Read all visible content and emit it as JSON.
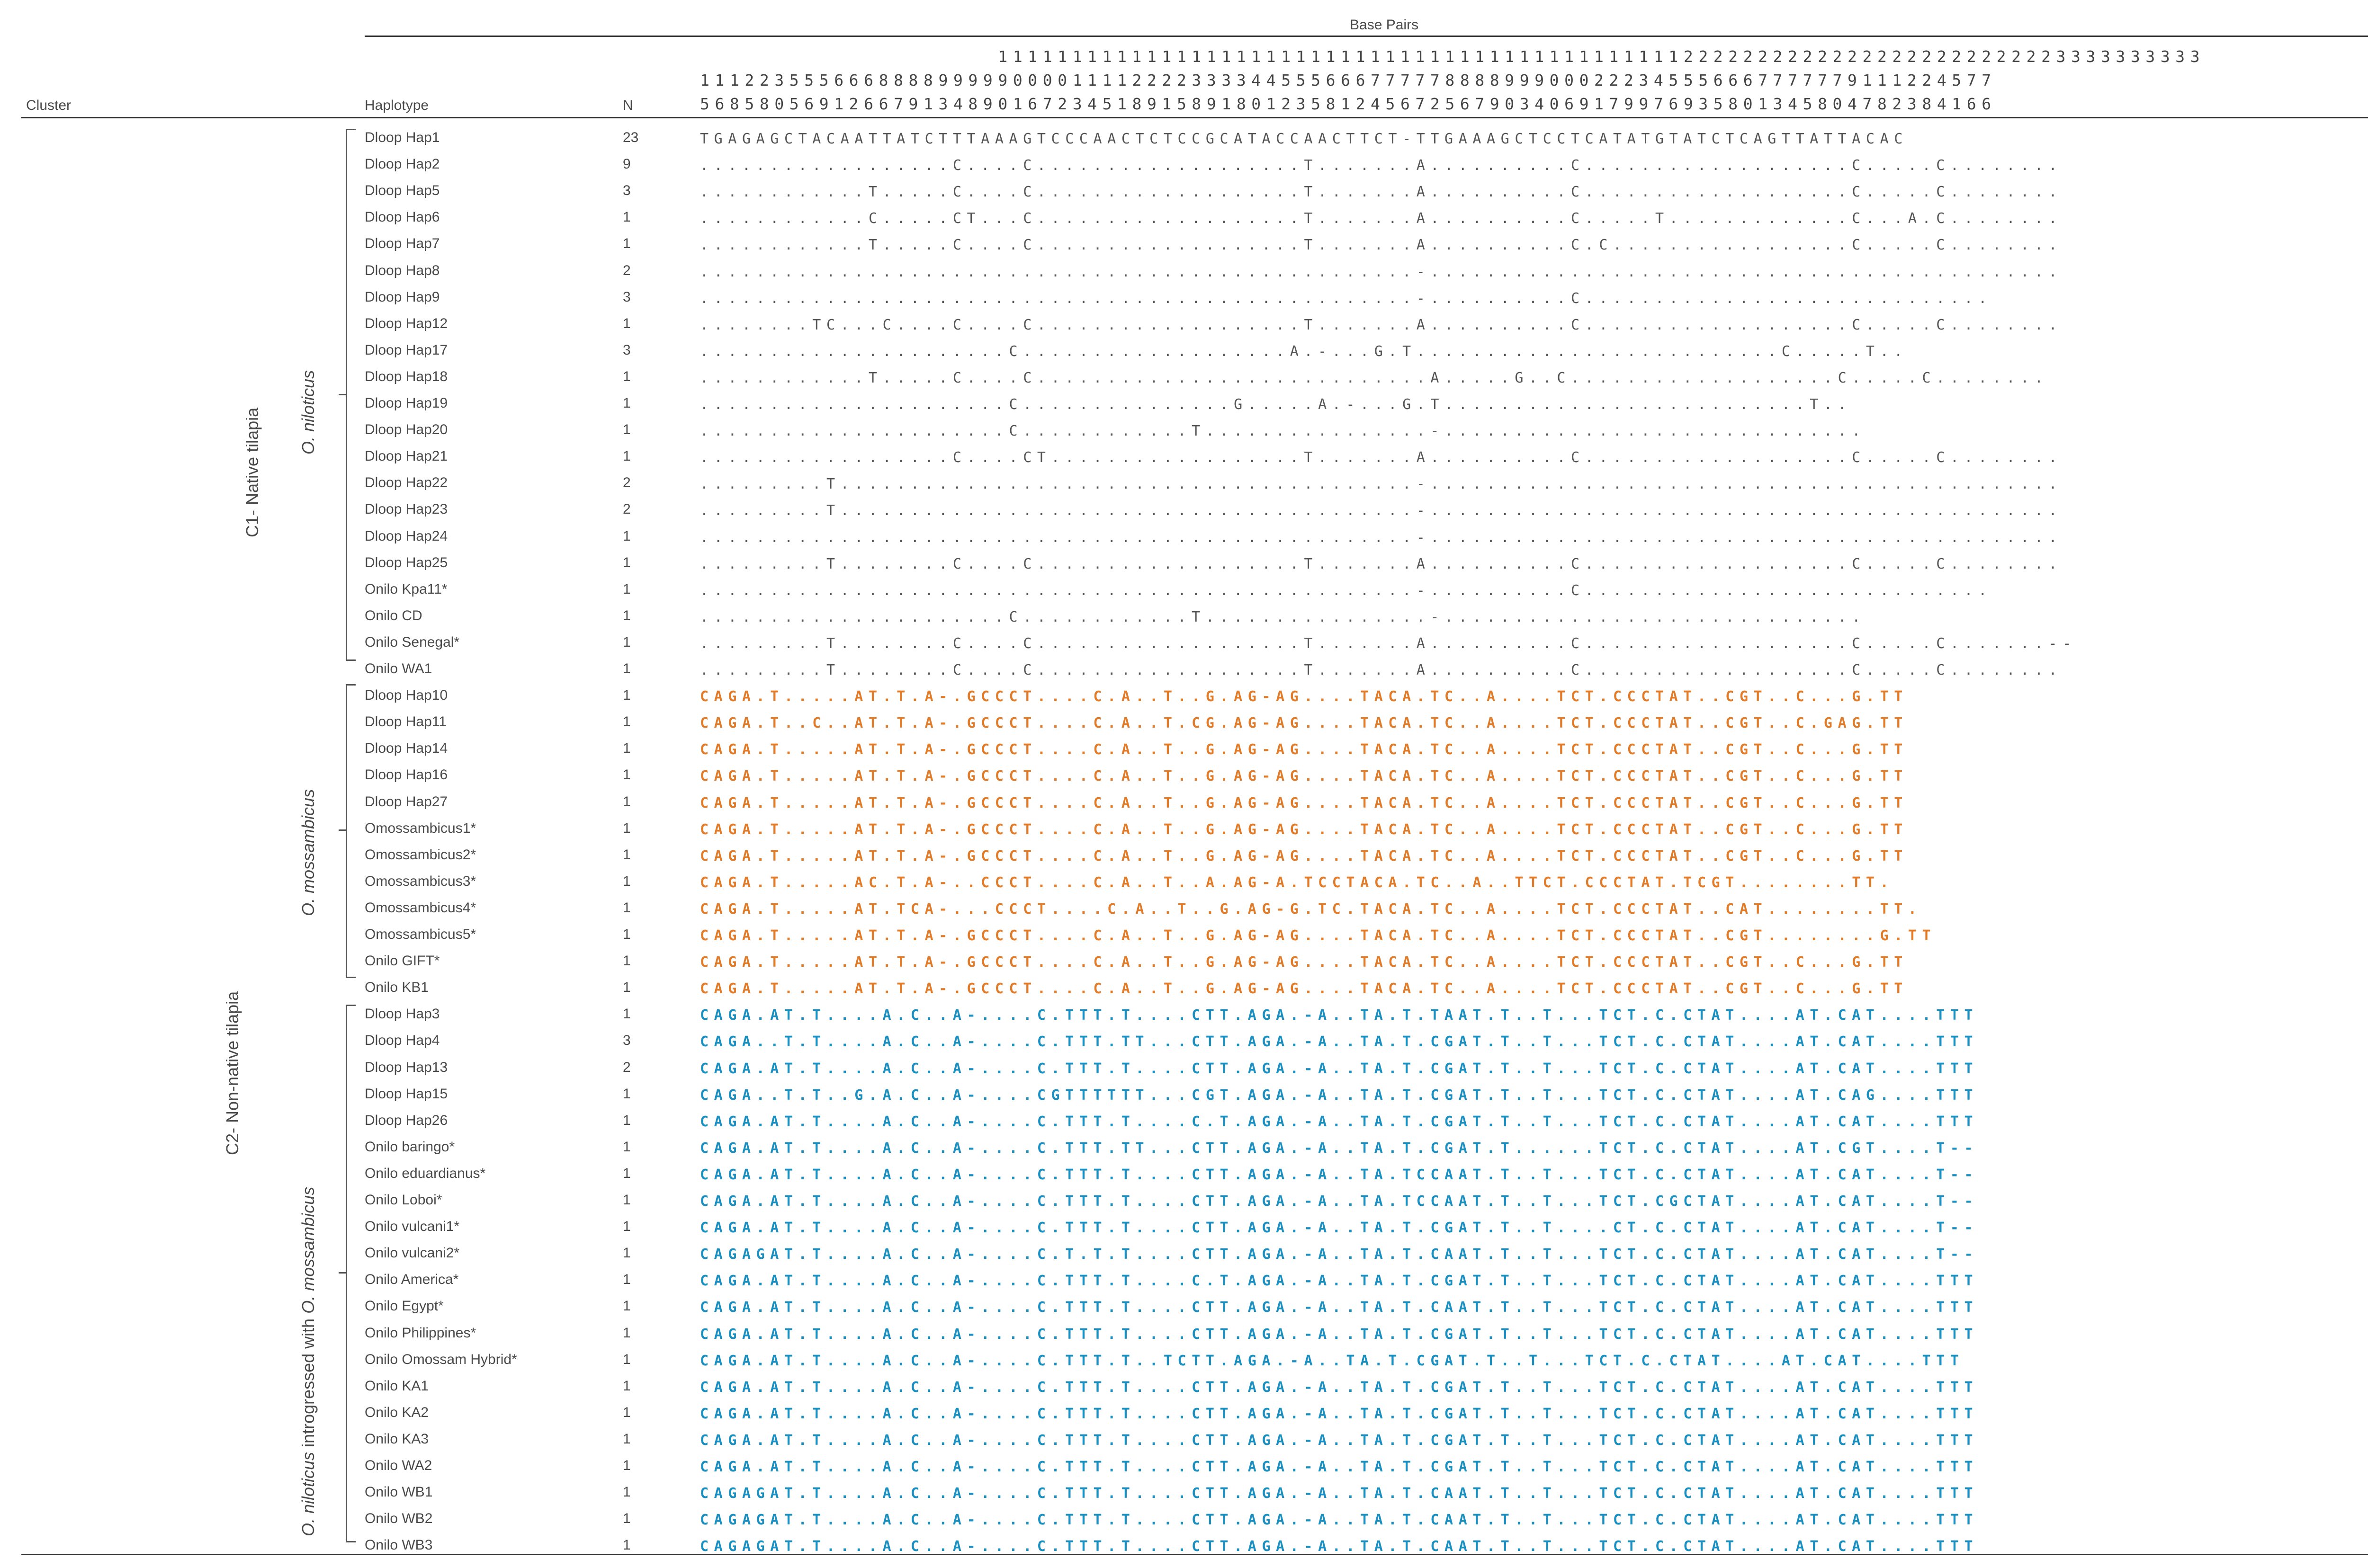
{
  "table": {
    "header": {
      "group_label": "Base Pairs",
      "cluster_label": "Cluster",
      "haplotype_label": "Haplotype",
      "n_label": "N",
      "positions_row1": "                    111111111111111111111111111111111111111111111122222222222222222222222223333333333",
      "positions_row2": "111223555666888899999000011112222333344555666777778888999000222345556667777779111224577",
      "positions_row3": "568580569126679134890167234518915891801235812456725679034069179976935801345804782384166"
    },
    "clusters": [
      {
        "label": "C1- Native tilapia",
        "species": "O. niloticus",
        "species_prefix": "",
        "species_suffix": ""
      },
      {
        "label": "C2- Non-native tilapia",
        "species": "O. mossambicus",
        "species_prefix": "",
        "species_suffix": ""
      },
      {
        "label": "",
        "species": "O. niloticus",
        "species_prefix": "",
        "species_suffix": " introgressed with ",
        "species2": "O. mossambicus"
      }
    ],
    "rows": [
      {
        "name": "Dloop Hap1",
        "n": "23",
        "seq": "TGAGAGCTACAATTATCTTTAAAGTCCCAACTCTCCGCATACCAACTTCT-TTGAAAGCTCCTCATATGTATCTCAGTTATTACAC",
        "color": ""
      },
      {
        "name": "Dloop Hap2",
        "n": "9",
        "seq": "..................C....C...................T.......A..........C...................C.....C........",
        "color": ""
      },
      {
        "name": "Dloop Hap5",
        "n": "3",
        "seq": "............T.....C....C...................T.......A..........C...................C.....C........",
        "color": ""
      },
      {
        "name": "Dloop Hap6",
        "n": "1",
        "seq": "............C.....CT...C...................T.......A..........C.....T.............C...A.C........",
        "color": ""
      },
      {
        "name": "Dloop Hap7",
        "n": "1",
        "seq": "............T.....C....C...................T.......A..........C.C.................C.....C........",
        "color": ""
      },
      {
        "name": "Dloop Hap8",
        "n": "2",
        "seq": "...................................................-.............................................",
        "color": ""
      },
      {
        "name": "Dloop Hap9",
        "n": "3",
        "seq": "...................................................-..........C.............................",
        "color": ""
      },
      {
        "name": "Dloop Hap12",
        "n": "1",
        "seq": "........TC...C....C....C...................T.......A..........C...................C.....C........",
        "color": ""
      },
      {
        "name": "Dloop Hap17",
        "n": "3",
        "seq": "......................C...................A.-...G.T..........................C.....T..",
        "color": ""
      },
      {
        "name": "Dloop Hap18",
        "n": "1",
        "seq": "............T.....C....C............................A.....G..C...................C.....C........",
        "color": ""
      },
      {
        "name": "Dloop Hap19",
        "n": "1",
        "seq": "......................C...............G.....A.-...G.T..........................T..",
        "color": ""
      },
      {
        "name": "Dloop Hap20",
        "n": "1",
        "seq": "......................C............T................-..............................",
        "color": ""
      },
      {
        "name": "Dloop Hap21",
        "n": "1",
        "seq": "..................C....CT..................T.......A..........C...................C.....C........",
        "color": ""
      },
      {
        "name": "Dloop Hap22",
        "n": "2",
        "seq": ".........T.........................................-.............................................",
        "color": ""
      },
      {
        "name": "Dloop Hap23",
        "n": "2",
        "seq": ".........T.........................................-.............................................",
        "color": ""
      },
      {
        "name": "Dloop Hap24",
        "n": "1",
        "seq": "...................................................-.............................................",
        "color": ""
      },
      {
        "name": "Dloop Hap25",
        "n": "1",
        "seq": ".........T........C....C...................T.......A..........C...................C.....C........",
        "color": ""
      },
      {
        "name": "Onilo Kpa11*",
        "n": "1",
        "seq": "...................................................-..........C.............................",
        "color": ""
      },
      {
        "name": "Onilo CD",
        "n": "1",
        "seq": "......................C............T................-..............................",
        "color": ""
      },
      {
        "name": "Onilo Senegal*",
        "n": "1",
        "seq": ".........T........C....C...................T.......A..........C...................C.....C.......--",
        "color": ""
      },
      {
        "name": "Onilo WA1",
        "n": "1",
        "seq": ".........T........C....C...................T.......A..........C...................C.....C........",
        "color": ""
      },
      {
        "name": "Dloop Hap10",
        "n": "1",
        "seq": "CAGA.T.....AT.T.A-.GCCCT....C.A..T..G.AG-AG....TACA.TC..A....TCT.CCCTAT..CGT..C...G.TT",
        "color": "o"
      },
      {
        "name": "Dloop Hap11",
        "n": "1",
        "seq": "CAGA.T..C..AT.T.A-.GCCCT....C.A..T.CG.AG-AG....TACA.TC..A....TCT.CCCTAT..CGT..C.GAG.TT",
        "color": "o"
      },
      {
        "name": "Dloop Hap14",
        "n": "1",
        "seq": "CAGA.T.....AT.T.A-.GCCCT....C.A..T..G.AG-AG....TACA.TC..A....TCT.CCCTAT..CGT..C...G.TT",
        "color": "o"
      },
      {
        "name": "Dloop Hap16",
        "n": "1",
        "seq": "CAGA.T.....AT.T.A-.GCCCT....C.A..T..G.AG-AG....TACA.TC..A....TCT.CCCTAT..CGT..C...G.TT",
        "color": "o"
      },
      {
        "name": "Dloop Hap27",
        "n": "1",
        "seq": "CAGA.T.....AT.T.A-.GCCCT....C.A..T..G.AG-AG....TACA.TC..A....TCT.CCCTAT..CGT..C...G.TT",
        "color": "o"
      },
      {
        "name": "Omossambicus1*",
        "n": "1",
        "seq": "CAGA.T.....AT.T.A-.GCCCT....C.A..T..G.AG-AG....TACA.TC..A....TCT.CCCTAT..CGT..C...G.TT",
        "color": "o"
      },
      {
        "name": "Omossambicus2*",
        "n": "1",
        "seq": "CAGA.T.....AT.T.A-.GCCCT....C.A..T..G.AG-AG....TACA.TC..A....TCT.CCCTAT..CGT..C...G.TT",
        "color": "o"
      },
      {
        "name": "Omossambicus3*",
        "n": "1",
        "seq": "CAGA.T.....AC.T.A-..CCCT....C.A..T..A.AG-A.TCCTACA.TC..A..TTCT.CCCTAT.TCGT........TT.",
        "color": "o"
      },
      {
        "name": "Omossambicus4*",
        "n": "1",
        "seq": "CAGA.T.....AT.TCA-...CCCT....C.A..T..G.AG-G.TC.TACA.TC..A....TCT.CCCTAT..CAT........TT.",
        "color": "o"
      },
      {
        "name": "Omossambicus5*",
        "n": "1",
        "seq": "CAGA.T.....AT.T.A-.GCCCT....C.A..T..G.AG-AG....TACA.TC..A....TCT.CCCTAT..CGT........G.TT",
        "color": "o"
      },
      {
        "name": "Onilo GIFT*",
        "n": "1",
        "seq": "CAGA.T.....AT.T.A-.GCCCT....C.A..T..G.AG-AG....TACA.TC..A....TCT.CCCTAT..CGT..C...G.TT",
        "color": "o"
      },
      {
        "name": "Onilo KB1",
        "n": "1",
        "seq": "CAGA.T.....AT.T.A-.GCCCT....C.A..T..G.AG-AG....TACA.TC..A....TCT.CCCTAT..CGT..C...G.TT",
        "color": "o"
      },
      {
        "name": "Dloop Hap3",
        "n": "1",
        "seq": "CAGA.AT.T....A.C..A-....C.TTT.T....CTT.AGA.-A..TA.T.TAAT.T..T...TCT.C.CTAT....AT.CAT....TTT",
        "color": "b"
      },
      {
        "name": "Dloop Hap4",
        "n": "3",
        "seq": "CAGA..T.T....A.C..A-....C.TTT.TT...CTT.AGA.-A..TA.T.CGAT.T..T...TCT.C.CTAT....AT.CAT....TTT",
        "color": "b"
      },
      {
        "name": "Dloop Hap13",
        "n": "2",
        "seq": "CAGA.AT.T....A.C..A-....C.TTT.T....CTT.AGA.-A..TA.T.CGAT.T..T...TCT.C.CTAT....AT.CAT....TTT",
        "color": "b"
      },
      {
        "name": "Dloop Hap15",
        "n": "1",
        "seq": "CAGA..T.T..G.A.C..A-....CGTTTTTT...CGT.AGA.-A..TA.T.CGAT.T..T...TCT.C.CTAT....AT.CAG....TTT",
        "color": "b"
      },
      {
        "name": "Dloop Hap26",
        "n": "1",
        "seq": "CAGA.AT.T....A.C..A-....C.TTT.T....C.T.AGA.-A..TA.T.CGAT.T..T...TCT.C.CTAT....AT.CAT....TTT",
        "color": "b"
      },
      {
        "name": "Onilo baringo*",
        "n": "1",
        "seq": "CAGA.AT.T....A.C..A-....C.TTT.TT...CTT.AGA.-A..TA.T.CGAT.T......TCT.C.CTAT....AT.CGT....T--",
        "color": "b"
      },
      {
        "name": "Onilo eduardianus*",
        "n": "1",
        "seq": "CAGA.AT.T....A.C..A-....C.TTT.T....CTT.AGA.-A..TA.TCCAAT.T..T...TCT.C.CTAT....AT.CAT....T--",
        "color": "b"
      },
      {
        "name": "Onilo Loboi*",
        "n": "1",
        "seq": "CAGA.AT.T....A.C..A-....C.TTT.T....CTT.AGA.-A..TA.TCCAAT.T..T...TCT.CGCTAT....AT.CAT....T--",
        "color": "b"
      },
      {
        "name": "Onilo vulcani1*",
        "n": "1",
        "seq": "CAGA.AT.T....A.C..A-....C.TTT.T....CTT.AGA.-A..TA.T.CGAT.T..T....CT.C.CTAT....AT.CAT....T--",
        "color": "b"
      },
      {
        "name": "Onilo vulcani2*",
        "n": "1",
        "seq": "CAGAGAT.T....A.C..A-....C.T.T.T....CTT.AGA.-A..TA.T.CAAT.T..T...TCT.C.CTAT....AT.CAT....T--",
        "color": "b"
      },
      {
        "name": "Onilo America*",
        "n": "1",
        "seq": "CAGA.AT.T....A.C..A-....C.TTT.T....C.T.AGA.-A..TA.T.CGAT.T..T...TCT.C.CTAT....AT.CAT....TTT",
        "color": "b"
      },
      {
        "name": "Onilo Egypt*",
        "n": "1",
        "seq": "CAGA.AT.T....A.C..A-....C.TTT.T....CTT.AGA.-A..TA.T.CAAT.T..T...TCT.C.CTAT....AT.CAT....TTT",
        "color": "b"
      },
      {
        "name": "Onilo Philippines*",
        "n": "1",
        "seq": "CAGA.AT.T....A.C..A-....C.TTT.T....CTT.AGA.-A..TA.T.CGAT.T..T...TCT.C.CTAT....AT.CAT....TTT",
        "color": "b"
      },
      {
        "name": "Onilo Omossam Hybrid*",
        "n": "1",
        "seq": "CAGA.AT.T....A.C..A-....C.TTT.T..TCTT.AGA.-A..TA.T.CGAT.T..T...TCT.C.CTAT....AT.CAT....TTT",
        "color": "b"
      },
      {
        "name": "Onilo KA1",
        "n": "1",
        "seq": "CAGA.AT.T....A.C..A-....C.TTT.T....CTT.AGA.-A..TA.T.CGAT.T..T...TCT.C.CTAT....AT.CAT....TTT",
        "color": "b"
      },
      {
        "name": "Onilo KA2",
        "n": "1",
        "seq": "CAGA.AT.T....A.C..A-....C.TTT.T....CTT.AGA.-A..TA.T.CGAT.T..T...TCT.C.CTAT....AT.CAT....TTT",
        "color": "b"
      },
      {
        "name": "Onilo KA3",
        "n": "1",
        "seq": "CAGA.AT.T....A.C..A-....C.TTT.T....CTT.AGA.-A..TA.T.CGAT.T..T...TCT.C.CTAT....AT.CAT....TTT",
        "color": "b"
      },
      {
        "name": "Onilo WA2",
        "n": "1",
        "seq": "CAGA.AT.T....A.C..A-....C.TTT.T....CTT.AGA.-A..TA.T.CGAT.T..T...TCT.C.CTAT....AT.CAT....TTT",
        "color": "b"
      },
      {
        "name": "Onilo WB1",
        "n": "1",
        "seq": "CAGAGAT.T....A.C..A-....C.TTT.T....CTT.AGA.-A..TA.T.CAAT.T..T...TCT.C.CTAT....AT.CAT....TTT",
        "color": "b"
      },
      {
        "name": "Onilo WB2",
        "n": "1",
        "seq": "CAGAGAT.T....A.C..A-....C.TTT.T....CTT.AGA.-A..TA.T.CAAT.T..T...TCT.C.CTAT....AT.CAT....TTT",
        "color": "b"
      },
      {
        "name": "Onilo WB3",
        "n": "1",
        "seq": "CAGAGAT.T....A.C..A-....C.TTT.T....CTT.AGA.-A..TA.T.CAAT.T..T...TCT.C.CTAT....AT.CAT....TTT",
        "color": "b"
      }
    ],
    "colors": {
      "native": "#555555",
      "orange": "#e07b2a",
      "blue": "#1a8fc0",
      "rule": "#333333"
    }
  }
}
